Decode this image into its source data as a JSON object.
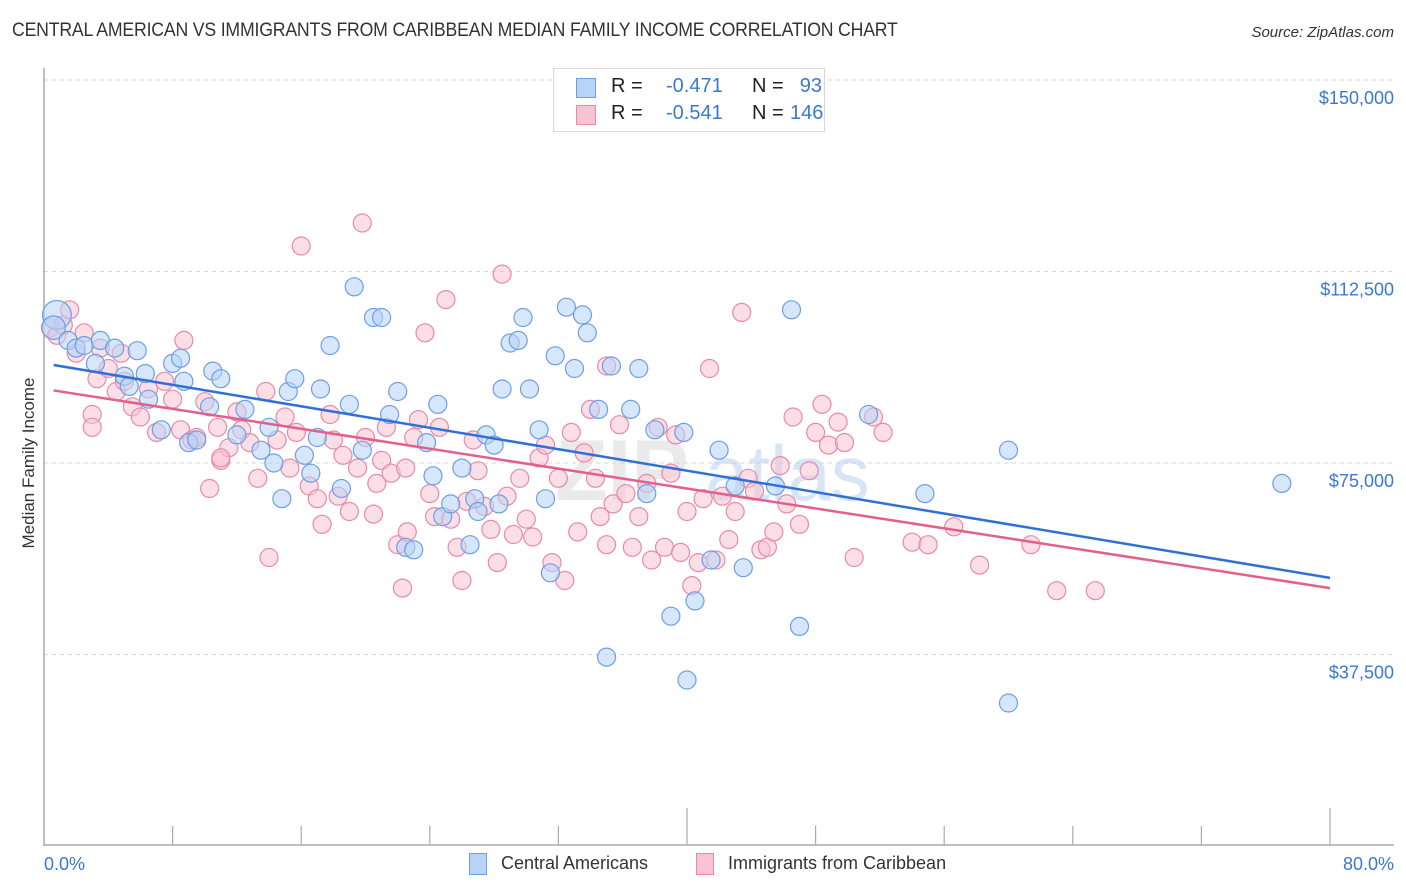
{
  "header": {
    "title": "CENTRAL AMERICAN VS IMMIGRANTS FROM CARIBBEAN MEDIAN FAMILY INCOME CORRELATION CHART",
    "source": "Source: ZipAtlas.com"
  },
  "watermark": {
    "zip": "ZIP",
    "atlas": "atlas"
  },
  "legend": {
    "series": [
      {
        "name": "Central Americans",
        "r_label": "R =",
        "r_value": "-0.471",
        "n_label": "N =",
        "n_value": "93",
        "fill": "#b7d3f7",
        "stroke": "#6d9ee6"
      },
      {
        "name": "Immigrants from Caribbean",
        "r_label": "R =",
        "r_value": "-0.541",
        "n_label": "N =",
        "n_value": "146",
        "fill": "#f9c3d3",
        "stroke": "#e88aa8"
      }
    ]
  },
  "chart_data": {
    "type": "scatter",
    "title": "CENTRAL AMERICAN VS IMMIGRANTS FROM CARIBBEAN MEDIAN FAMILY INCOME CORRELATION CHART",
    "xlabel": "",
    "ylabel": "Median Family Income",
    "xlim": [
      0,
      80
    ],
    "ylim": [
      0,
      155000
    ],
    "x_tick_labels": [
      "0.0%",
      "80.0%"
    ],
    "x_ticks_minor": [
      0,
      8,
      16,
      24,
      32,
      40,
      48,
      56,
      64,
      72,
      80
    ],
    "y_ticks": [
      37500,
      75000,
      112500,
      150000
    ],
    "y_tick_labels": [
      "$37,500",
      "$75,000",
      "$112,500",
      "$150,000"
    ],
    "grid": true,
    "legend_placement": "top-center",
    "colors": {
      "blue_line": "#2f6fd6",
      "pink_line": "#e2608a",
      "tick_text": "#3a78d4"
    },
    "series": [
      {
        "name": "Central Americans",
        "r": -0.471,
        "n": 93,
        "trend": {
          "x": [
            0,
            80
          ],
          "y": [
            94500,
            52500
          ]
        },
        "points": [
          [
            0.8,
            104000,
            1.6
          ],
          [
            0.6,
            101500,
            1.3
          ],
          [
            1.5,
            99000
          ],
          [
            2.0,
            97500
          ],
          [
            2.5,
            98000
          ],
          [
            3.2,
            94500
          ],
          [
            3.5,
            99000
          ],
          [
            4.4,
            97500
          ],
          [
            5.0,
            92000
          ],
          [
            5.3,
            90000
          ],
          [
            5.8,
            97000
          ],
          [
            6.3,
            92500
          ],
          [
            6.5,
            87500
          ],
          [
            7.3,
            81500
          ],
          [
            8.0,
            94500
          ],
          [
            8.5,
            95500
          ],
          [
            8.7,
            91000
          ],
          [
            9.0,
            79000
          ],
          [
            9.5,
            79500
          ],
          [
            10.3,
            86000
          ],
          [
            10.5,
            93000
          ],
          [
            11.0,
            91500
          ],
          [
            12.0,
            80500
          ],
          [
            12.5,
            85500
          ],
          [
            13.5,
            77500
          ],
          [
            14.0,
            82000
          ],
          [
            14.3,
            75000
          ],
          [
            14.8,
            68000
          ],
          [
            15.2,
            89000
          ],
          [
            15.6,
            91500
          ],
          [
            16.2,
            76500
          ],
          [
            16.6,
            73000
          ],
          [
            17.2,
            89500
          ],
          [
            17.8,
            98000
          ],
          [
            18.5,
            70000
          ],
          [
            19.0,
            86500
          ],
          [
            19.3,
            109500
          ],
          [
            19.8,
            77500
          ],
          [
            20.5,
            103500
          ],
          [
            21.0,
            103500
          ],
          [
            21.5,
            84500
          ],
          [
            22.0,
            89000
          ],
          [
            22.5,
            58500
          ],
          [
            23.0,
            58000
          ],
          [
            23.8,
            79000
          ],
          [
            24.2,
            72500
          ],
          [
            24.5,
            86500
          ],
          [
            24.8,
            64500
          ],
          [
            25.3,
            67000
          ],
          [
            26.0,
            74000
          ],
          [
            26.5,
            59000
          ],
          [
            26.8,
            68000
          ],
          [
            27.0,
            65500
          ],
          [
            27.5,
            80500
          ],
          [
            28.0,
            78500
          ],
          [
            28.3,
            67000
          ],
          [
            28.5,
            89500
          ],
          [
            29.0,
            98500
          ],
          [
            29.5,
            99000
          ],
          [
            29.8,
            103500
          ],
          [
            30.2,
            89500
          ],
          [
            30.8,
            81500
          ],
          [
            31.2,
            68000
          ],
          [
            31.5,
            53500
          ],
          [
            31.8,
            96000
          ],
          [
            32.5,
            105500
          ],
          [
            33.0,
            93500
          ],
          [
            33.5,
            104000
          ],
          [
            33.8,
            100500
          ],
          [
            34.5,
            85500
          ],
          [
            35.0,
            37000
          ],
          [
            35.3,
            94000
          ],
          [
            36.5,
            85500
          ],
          [
            37.0,
            93500
          ],
          [
            37.5,
            69000
          ],
          [
            38.0,
            81500
          ],
          [
            39.0,
            45000
          ],
          [
            39.8,
            81000
          ],
          [
            40.0,
            32500
          ],
          [
            40.5,
            48000
          ],
          [
            41.5,
            56000
          ],
          [
            42.0,
            77500
          ],
          [
            43.0,
            70500
          ],
          [
            43.5,
            54500
          ],
          [
            45.5,
            70500
          ],
          [
            46.5,
            105000
          ],
          [
            47.0,
            43000
          ],
          [
            51.3,
            84500
          ],
          [
            54.8,
            69000
          ],
          [
            60.0,
            77500
          ],
          [
            77.0,
            71000
          ],
          [
            60.0,
            28000
          ],
          [
            17.0,
            80000
          ]
        ]
      },
      {
        "name": "Immigrants from Caribbean",
        "r": -0.541,
        "n": 146,
        "trend": {
          "x": [
            0,
            80
          ],
          "y": [
            89500,
            50500
          ]
        },
        "points": [
          [
            0.4,
            101500
          ],
          [
            0.8,
            100000
          ],
          [
            1.2,
            102000
          ],
          [
            1.6,
            105000
          ],
          [
            2.0,
            96500
          ],
          [
            2.5,
            100500
          ],
          [
            3.0,
            84500
          ],
          [
            3.3,
            91500
          ],
          [
            3.5,
            97500
          ],
          [
            4.0,
            93500
          ],
          [
            4.5,
            89000
          ],
          [
            4.8,
            96500
          ],
          [
            5.0,
            91000
          ],
          [
            5.5,
            86000
          ],
          [
            6.0,
            84000
          ],
          [
            6.5,
            89500
          ],
          [
            7.0,
            81000
          ],
          [
            7.5,
            91000
          ],
          [
            8.0,
            87500
          ],
          [
            8.5,
            81500
          ],
          [
            8.7,
            99000
          ],
          [
            9.2,
            79500
          ],
          [
            9.5,
            80000
          ],
          [
            10.0,
            87000
          ],
          [
            10.3,
            70000
          ],
          [
            10.8,
            82000
          ],
          [
            11.0,
            75500
          ],
          [
            11.5,
            78000
          ],
          [
            12.0,
            85000
          ],
          [
            12.3,
            81500
          ],
          [
            12.8,
            79000
          ],
          [
            13.3,
            72000
          ],
          [
            13.8,
            89000
          ],
          [
            14.0,
            56500
          ],
          [
            14.5,
            79500
          ],
          [
            15.0,
            84000
          ],
          [
            15.3,
            74000
          ],
          [
            15.7,
            81000
          ],
          [
            16.0,
            117500
          ],
          [
            16.5,
            70500
          ],
          [
            17.0,
            68000
          ],
          [
            17.3,
            63000
          ],
          [
            17.8,
            84500
          ],
          [
            18.0,
            79500
          ],
          [
            18.3,
            68500
          ],
          [
            18.6,
            76500
          ],
          [
            19.0,
            65500
          ],
          [
            19.5,
            74000
          ],
          [
            19.8,
            122000
          ],
          [
            20.0,
            80000
          ],
          [
            20.5,
            65000
          ],
          [
            20.7,
            71000
          ],
          [
            21.0,
            75500
          ],
          [
            21.3,
            82000
          ],
          [
            21.6,
            73000
          ],
          [
            22.0,
            59000
          ],
          [
            22.3,
            50500
          ],
          [
            22.6,
            61500
          ],
          [
            23.0,
            80000
          ],
          [
            23.3,
            83500
          ],
          [
            23.7,
            100500
          ],
          [
            24.0,
            69000
          ],
          [
            24.3,
            64500
          ],
          [
            24.6,
            82000
          ],
          [
            25.0,
            107000
          ],
          [
            25.3,
            64000
          ],
          [
            25.7,
            58500
          ],
          [
            26.0,
            52000
          ],
          [
            26.3,
            67500
          ],
          [
            26.7,
            79500
          ],
          [
            27.0,
            73500
          ],
          [
            27.4,
            66500
          ],
          [
            27.8,
            62000
          ],
          [
            28.2,
            55500
          ],
          [
            28.5,
            112000
          ],
          [
            28.8,
            68500
          ],
          [
            29.2,
            61000
          ],
          [
            29.6,
            72000
          ],
          [
            30.0,
            64000
          ],
          [
            30.4,
            60500
          ],
          [
            30.8,
            76000
          ],
          [
            31.2,
            78500
          ],
          [
            31.6,
            55500
          ],
          [
            32.0,
            72000
          ],
          [
            32.4,
            52000
          ],
          [
            32.8,
            81000
          ],
          [
            33.2,
            61500
          ],
          [
            33.6,
            77000
          ],
          [
            34.0,
            85500
          ],
          [
            34.3,
            72000
          ],
          [
            34.6,
            64500
          ],
          [
            35.0,
            59000
          ],
          [
            35.4,
            67000
          ],
          [
            35.8,
            82500
          ],
          [
            36.2,
            69000
          ],
          [
            36.6,
            58500
          ],
          [
            37.0,
            64500
          ],
          [
            37.5,
            71000
          ],
          [
            37.8,
            56000
          ],
          [
            38.2,
            82000
          ],
          [
            38.6,
            58500
          ],
          [
            39.0,
            73000
          ],
          [
            39.3,
            80500
          ],
          [
            39.6,
            57500
          ],
          [
            40.0,
            65500
          ],
          [
            40.3,
            51000
          ],
          [
            40.7,
            55500
          ],
          [
            41.0,
            68000
          ],
          [
            41.4,
            93500
          ],
          [
            41.8,
            56000
          ],
          [
            42.2,
            68500
          ],
          [
            42.6,
            60000
          ],
          [
            43.0,
            65500
          ],
          [
            43.4,
            104500
          ],
          [
            43.8,
            72000
          ],
          [
            44.2,
            69500
          ],
          [
            44.6,
            58000
          ],
          [
            45.0,
            58500
          ],
          [
            45.4,
            61500
          ],
          [
            45.8,
            74500
          ],
          [
            46.2,
            67000
          ],
          [
            46.6,
            84000
          ],
          [
            47.0,
            63000
          ],
          [
            47.6,
            73500
          ],
          [
            48.0,
            81000
          ],
          [
            48.4,
            86500
          ],
          [
            48.8,
            78500
          ],
          [
            49.4,
            83000
          ],
          [
            49.8,
            79000
          ],
          [
            50.4,
            56500
          ],
          [
            51.6,
            84000
          ],
          [
            52.2,
            81000
          ],
          [
            54.0,
            59500
          ],
          [
            55.0,
            59000
          ],
          [
            56.6,
            62500
          ],
          [
            58.2,
            55000
          ],
          [
            61.4,
            59000
          ],
          [
            63.0,
            50000
          ],
          [
            65.4,
            50000
          ],
          [
            3.0,
            82000
          ],
          [
            11.0,
            76000
          ],
          [
            22.5,
            74000
          ],
          [
            35.0,
            94000
          ]
        ]
      }
    ]
  }
}
